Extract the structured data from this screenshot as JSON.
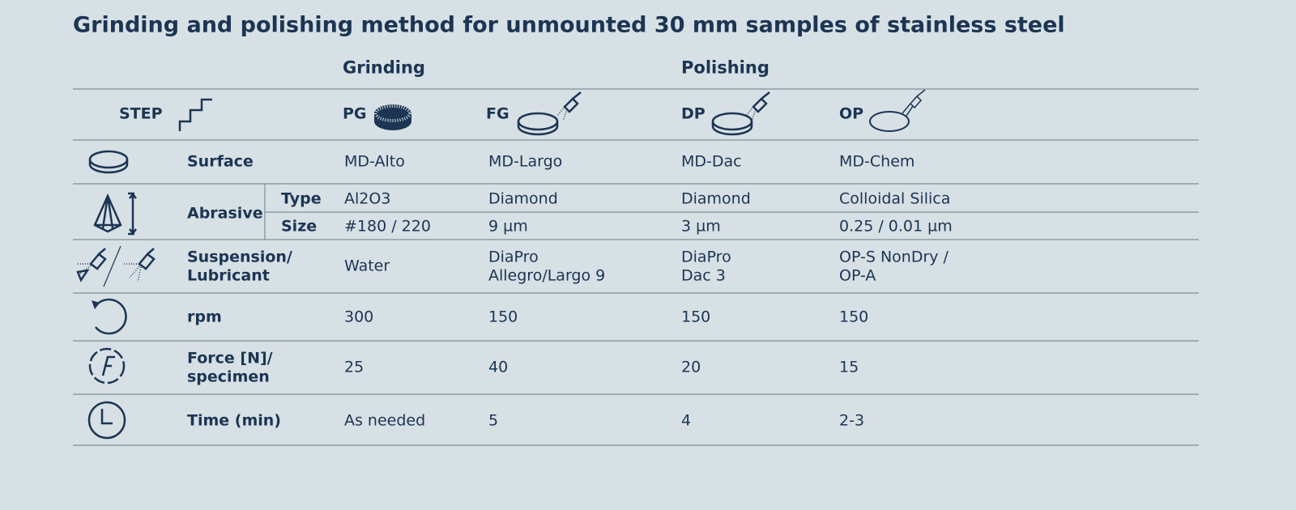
{
  "title": "Grinding and polishing method for unmounted 30 mm samples of stainless steel",
  "groups": [
    "Grinding",
    "Polishing"
  ],
  "step": {
    "label": "STEP",
    "names": [
      "PG",
      "FG",
      "DP",
      "OP"
    ]
  },
  "rows": [
    {
      "label": [
        "Surface"
      ],
      "values": [
        [
          "MD-Alto"
        ],
        [
          "MD-Largo"
        ],
        [
          "MD-Dac"
        ],
        [
          "MD-Chem"
        ]
      ]
    },
    {
      "label": [
        "Abrasive"
      ],
      "sub": [
        {
          "label": "Type",
          "values": [
            [
              "Al2O3"
            ],
            [
              "Diamond"
            ],
            [
              "Diamond"
            ],
            [
              "Colloidal Silica"
            ]
          ]
        },
        {
          "label": "Size",
          "values": [
            [
              "#180 / 220"
            ],
            [
              "9 µm"
            ],
            [
              "3 µm"
            ],
            [
              "0.25 / 0.01 µm"
            ]
          ]
        }
      ]
    },
    {
      "label": [
        "Suspension/",
        "Lubricant"
      ],
      "values": [
        [
          "Water"
        ],
        [
          "DiaPro",
          "Allegro/Largo 9"
        ],
        [
          "DiaPro",
          "Dac 3"
        ],
        [
          "OP-S NonDry /",
          "OP-A"
        ]
      ]
    },
    {
      "label": [
        "rpm"
      ],
      "values": [
        [
          "300"
        ],
        [
          "150"
        ],
        [
          "150"
        ],
        [
          "150"
        ]
      ]
    },
    {
      "label": [
        "Force [N]/",
        "specimen"
      ],
      "values": [
        [
          "25"
        ],
        [
          "40"
        ],
        [
          "20"
        ],
        [
          "15"
        ]
      ]
    },
    {
      "label": [
        "Time (min)"
      ],
      "values": [
        [
          "As needed"
        ],
        [
          "5"
        ],
        [
          "4"
        ],
        [
          "2-3"
        ]
      ]
    }
  ]
}
